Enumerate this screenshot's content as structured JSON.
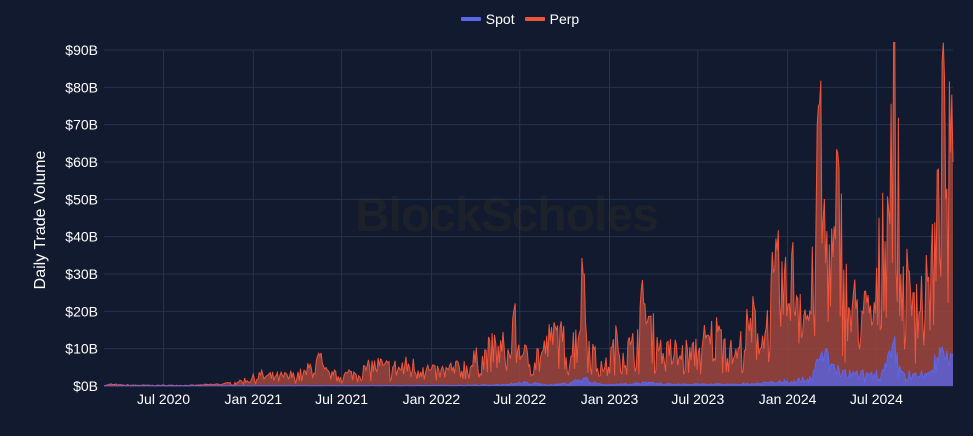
{
  "colors": {
    "background": "#111a2e",
    "grid": "#26334f",
    "spot": "#5c66e8",
    "spot_fill": "#5a62d8",
    "perp": "#ef553b",
    "perp_fill": "#a0463d",
    "watermark": "#2a2a2a"
  },
  "watermark_text": "BlockScholes",
  "chart_data": {
    "type": "area",
    "ylabel": "Daily Trade Volume",
    "xlabel": "",
    "ylim": [
      0,
      92
    ],
    "y_unit": "$B",
    "yticks": [
      {
        "value": 0,
        "label": "$0B"
      },
      {
        "value": 10,
        "label": "$10B"
      },
      {
        "value": 20,
        "label": "$20B"
      },
      {
        "value": 30,
        "label": "$30B"
      },
      {
        "value": 40,
        "label": "$40B"
      },
      {
        "value": 50,
        "label": "$50B"
      },
      {
        "value": 60,
        "label": "$60B"
      },
      {
        "value": 70,
        "label": "$70B"
      },
      {
        "value": 80,
        "label": "$80B"
      },
      {
        "value": 90,
        "label": "$90B"
      }
    ],
    "xlim": [
      "2020-03-01",
      "2024-12-05"
    ],
    "xticks": [
      {
        "value": "2020-07-01",
        "label": "Jul 2020"
      },
      {
        "value": "2021-01-01",
        "label": "Jan 2021"
      },
      {
        "value": "2021-07-01",
        "label": "Jul 2021"
      },
      {
        "value": "2022-01-01",
        "label": "Jan 2022"
      },
      {
        "value": "2022-07-01",
        "label": "Jul 2022"
      },
      {
        "value": "2023-01-01",
        "label": "Jan 2023"
      },
      {
        "value": "2023-07-01",
        "label": "Jul 2023"
      },
      {
        "value": "2024-01-01",
        "label": "Jan 2024"
      },
      {
        "value": "2024-07-01",
        "label": "Jul 2024"
      }
    ],
    "grid": true,
    "legend_position": "top-center",
    "series": [
      {
        "name": "Spot",
        "color": "#5c66e8",
        "points": [
          [
            "2020-03-01",
            0.05
          ],
          [
            "2020-06-01",
            0.05
          ],
          [
            "2020-09-01",
            0.05
          ],
          [
            "2020-12-01",
            0.05
          ],
          [
            "2021-03-01",
            0.08
          ],
          [
            "2021-06-01",
            0.1
          ],
          [
            "2021-09-01",
            0.12
          ],
          [
            "2021-12-01",
            0.15
          ],
          [
            "2022-03-01",
            0.2
          ],
          [
            "2022-06-01",
            0.4
          ],
          [
            "2022-07-15",
            1.0
          ],
          [
            "2022-09-01",
            0.3
          ],
          [
            "2022-10-01",
            0.8
          ],
          [
            "2022-11-10",
            2.2
          ],
          [
            "2022-12-15",
            0.4
          ],
          [
            "2023-01-15",
            0.5
          ],
          [
            "2023-03-15",
            1.0
          ],
          [
            "2023-05-01",
            0.5
          ],
          [
            "2023-07-01",
            0.5
          ],
          [
            "2023-09-01",
            0.5
          ],
          [
            "2023-11-01",
            0.8
          ],
          [
            "2023-12-15",
            1.5
          ],
          [
            "2024-01-15",
            1.5
          ],
          [
            "2024-02-15",
            2.5
          ],
          [
            "2024-03-05",
            7.0
          ],
          [
            "2024-03-20",
            10.0
          ],
          [
            "2024-04-01",
            6.0
          ],
          [
            "2024-04-15",
            4.0
          ],
          [
            "2024-05-15",
            3.5
          ],
          [
            "2024-06-15",
            3.0
          ],
          [
            "2024-07-15",
            4.0
          ],
          [
            "2024-08-05",
            11.5
          ],
          [
            "2024-08-20",
            4.0
          ],
          [
            "2024-09-15",
            3.0
          ],
          [
            "2024-10-15",
            3.5
          ],
          [
            "2024-11-12",
            10.5
          ],
          [
            "2024-11-25",
            6.5
          ],
          [
            "2024-12-05",
            8.5
          ]
        ]
      },
      {
        "name": "Perp",
        "color": "#ef553b",
        "points": [
          [
            "2020-03-01",
            0.1
          ],
          [
            "2020-03-15",
            0.5
          ],
          [
            "2020-04-01",
            0.3
          ],
          [
            "2020-06-01",
            0.2
          ],
          [
            "2020-09-01",
            0.2
          ],
          [
            "2020-11-01",
            0.6
          ],
          [
            "2020-12-01",
            1.0
          ],
          [
            "2021-01-01",
            2.5
          ],
          [
            "2021-01-15",
            3.0
          ],
          [
            "2021-02-15",
            2.5
          ],
          [
            "2021-04-15",
            3.5
          ],
          [
            "2021-05-19",
            8.0
          ],
          [
            "2021-05-25",
            4.0
          ],
          [
            "2021-06-15",
            3.0
          ],
          [
            "2021-07-20",
            3.5
          ],
          [
            "2021-09-07",
            6.0
          ],
          [
            "2021-10-15",
            5.0
          ],
          [
            "2021-11-15",
            6.0
          ],
          [
            "2021-12-15",
            5.0
          ],
          [
            "2022-01-15",
            4.0
          ],
          [
            "2022-02-15",
            5.0
          ],
          [
            "2022-03-15",
            5.5
          ],
          [
            "2022-05-12",
            11.0
          ],
          [
            "2022-06-15",
            9.0
          ],
          [
            "2022-06-18",
            18.0
          ],
          [
            "2022-07-05",
            8.0
          ],
          [
            "2022-08-15",
            9.0
          ],
          [
            "2022-09-13",
            15.0
          ],
          [
            "2022-10-15",
            8.0
          ],
          [
            "2022-11-09",
            30.0
          ],
          [
            "2022-11-20",
            12.0
          ],
          [
            "2022-12-20",
            4.0
          ],
          [
            "2023-01-15",
            12.0
          ],
          [
            "2023-02-15",
            10.0
          ],
          [
            "2023-03-13",
            22.0
          ],
          [
            "2023-04-15",
            10.0
          ],
          [
            "2023-06-15",
            9.0
          ],
          [
            "2023-08-17",
            15.0
          ],
          [
            "2023-09-15",
            8.0
          ],
          [
            "2023-10-24",
            18.0
          ],
          [
            "2023-11-15",
            14.0
          ],
          [
            "2023-12-11",
            32.0
          ],
          [
            "2024-01-03",
            22.0
          ],
          [
            "2024-01-12",
            33.0
          ],
          [
            "2024-02-15",
            20.0
          ],
          [
            "2024-02-28",
            38.0
          ],
          [
            "2024-03-05",
            75.0
          ],
          [
            "2024-03-15",
            45.0
          ],
          [
            "2024-04-01",
            32.0
          ],
          [
            "2024-04-13",
            52.0
          ],
          [
            "2024-05-01",
            25.0
          ],
          [
            "2024-06-01",
            20.0
          ],
          [
            "2024-07-01",
            22.0
          ],
          [
            "2024-08-05",
            84.0
          ],
          [
            "2024-08-20",
            30.0
          ],
          [
            "2024-09-15",
            25.0
          ],
          [
            "2024-10-15",
            28.0
          ],
          [
            "2024-11-06",
            43.0
          ],
          [
            "2024-11-12",
            87.0
          ],
          [
            "2024-11-20",
            50.0
          ],
          [
            "2024-12-05",
            60.0
          ]
        ]
      }
    ]
  }
}
